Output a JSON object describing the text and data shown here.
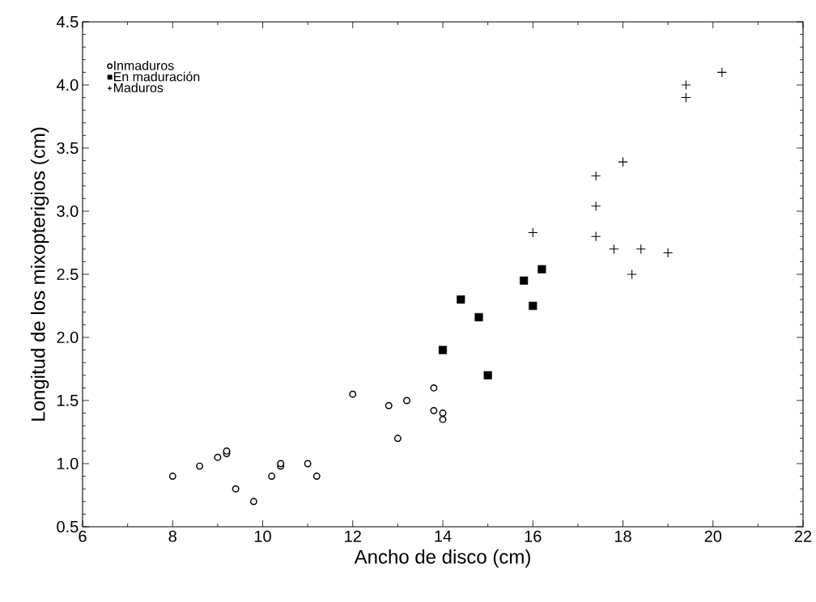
{
  "chart_data": {
    "type": "scatter",
    "xlabel": "Ancho de disco (cm)",
    "ylabel": "Longitud de los mixopterigios (cm)",
    "xlim": [
      6,
      22
    ],
    "ylim": [
      0.5,
      4.5
    ],
    "xticks": [
      6,
      8,
      10,
      12,
      14,
      16,
      18,
      20,
      22
    ],
    "yticks": [
      {
        "value": 0.5,
        "label": "0.5"
      },
      {
        "value": 1.0,
        "label": "1.0"
      },
      {
        "value": 1.5,
        "label": "1.5"
      },
      {
        "value": 2.0,
        "label": "2.0"
      },
      {
        "value": 2.5,
        "label": "2.5"
      },
      {
        "value": 3.0,
        "label": "3.0"
      },
      {
        "value": 3.5,
        "label": "3.5"
      },
      {
        "value": 4.0,
        "label": "4.0"
      },
      {
        "value": 4.5,
        "label": "4.5"
      }
    ],
    "legend": "top left",
    "series": [
      {
        "name": "Inmaduros",
        "color": "#000000",
        "marker": "circle",
        "x": [
          8,
          8.6,
          9,
          9.2,
          9.2,
          9.4,
          9.8,
          10.2,
          10.4,
          10.4,
          11,
          11.2,
          12,
          12.8,
          13,
          13.2,
          13.8,
          13.8,
          14,
          14
        ],
        "values": [
          0.9,
          0.98,
          1.05,
          1.08,
          1.1,
          0.8,
          0.7,
          0.9,
          0.98,
          1.0,
          1.0,
          0.9,
          1.55,
          1.46,
          1.2,
          1.5,
          1.6,
          1.42,
          1.4,
          1.35
        ]
      },
      {
        "name": "En maduración",
        "color": "#000000",
        "marker": "square",
        "x": [
          14,
          14.4,
          14.8,
          15,
          15.8,
          16,
          16.2
        ],
        "values": [
          1.9,
          2.3,
          2.16,
          1.7,
          2.45,
          2.25,
          2.54
        ]
      },
      {
        "name": "Maduros",
        "color": "#000000",
        "marker": "cross",
        "x": [
          16,
          17.4,
          17.4,
          17.4,
          17.8,
          18,
          18.2,
          18.4,
          19,
          19.4,
          19.4,
          20.2
        ],
        "values": [
          2.83,
          3.28,
          3.04,
          2.8,
          2.7,
          3.39,
          2.5,
          2.7,
          2.67,
          4.0,
          3.9,
          4.1
        ]
      }
    ]
  }
}
